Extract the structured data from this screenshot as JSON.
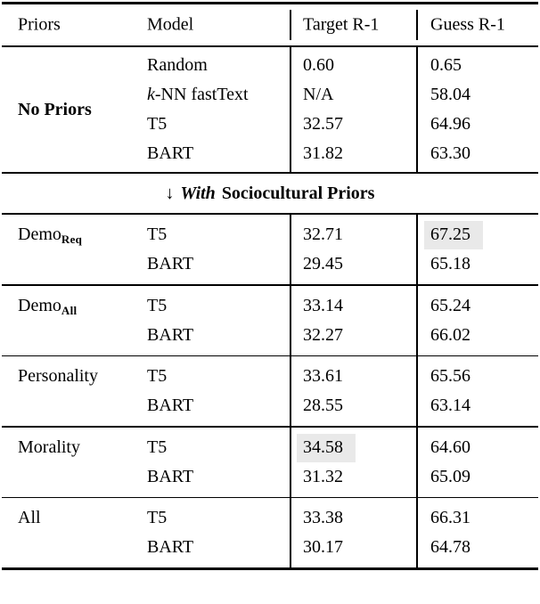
{
  "colors": {
    "text": "#000000",
    "background": "#ffffff",
    "rule": "#000000",
    "highlight": "#e9e9e9"
  },
  "header": {
    "col_priors": "Priors",
    "col_model": "Model",
    "col_target": "Target R-1",
    "col_guess": "Guess R-1"
  },
  "divider": {
    "arrow": "↓",
    "with_word": "With",
    "rest": "Sociocultural Priors"
  },
  "sections": [
    {
      "prior": {
        "base": "No Priors",
        "sub": ""
      },
      "rows": [
        {
          "model": "Random",
          "target": "0.60",
          "guess": "0.65"
        },
        {
          "model_prefix": "k",
          "model_rest": "-NN fastText",
          "target": "N/A",
          "guess": "58.04"
        },
        {
          "model": "T5",
          "target": "32.57",
          "guess": "64.96"
        },
        {
          "model": "BART",
          "target": "31.82",
          "guess": "63.30"
        }
      ]
    },
    {
      "prior": {
        "base": "Demo",
        "sub": "Req"
      },
      "rows": [
        {
          "model": "T5",
          "target": "32.71",
          "guess": "67.25",
          "guess_highlight": true
        },
        {
          "model": "BART",
          "target": "29.45",
          "guess": "65.18"
        }
      ]
    },
    {
      "prior": {
        "base": "Demo",
        "sub": "All"
      },
      "rows": [
        {
          "model": "T5",
          "target": "33.14",
          "guess": "65.24"
        },
        {
          "model": "BART",
          "target": "32.27",
          "guess": "66.02"
        }
      ]
    },
    {
      "prior": {
        "base": "Personality",
        "sub": ""
      },
      "rows": [
        {
          "model": "T5",
          "target": "33.61",
          "guess": "65.56"
        },
        {
          "model": "BART",
          "target": "28.55",
          "guess": "63.14"
        }
      ]
    },
    {
      "prior": {
        "base": "Morality",
        "sub": ""
      },
      "rows": [
        {
          "model": "T5",
          "target": "34.58",
          "target_highlight": true,
          "guess": "64.60"
        },
        {
          "model": "BART",
          "target": "31.32",
          "guess": "65.09"
        }
      ]
    },
    {
      "prior": {
        "base": "All",
        "sub": ""
      },
      "rows": [
        {
          "model": "T5",
          "target": "33.38",
          "guess": "66.31"
        },
        {
          "model": "BART",
          "target": "30.17",
          "guess": "64.78"
        }
      ]
    }
  ]
}
